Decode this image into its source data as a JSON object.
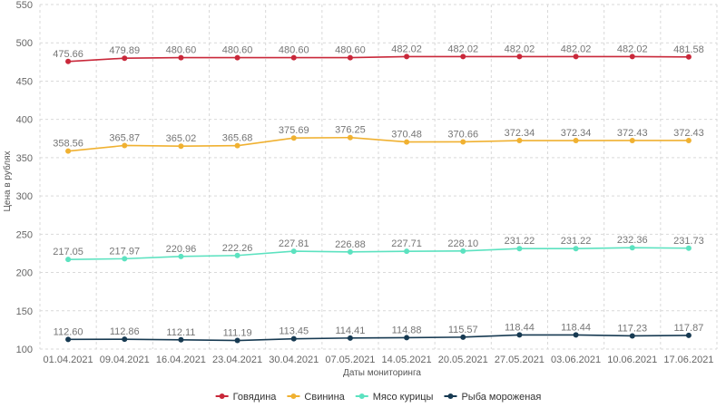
{
  "chart_data": {
    "type": "line",
    "title": "",
    "xlabel": "Даты мониторинга",
    "ylabel": "Цена в рублях",
    "ylim": [
      100,
      550
    ],
    "yticks": [
      "100",
      "150",
      "200",
      "250",
      "300",
      "350",
      "400",
      "450",
      "500",
      "550"
    ],
    "categories": [
      "01.04.2021",
      "09.04.2021",
      "16.04.2021",
      "23.04.2021",
      "30.04.2021",
      "07.05.2021",
      "14.05.2021",
      "20.05.2021",
      "27.05.2021",
      "03.06.2021",
      "10.06.2021",
      "17.06.2021"
    ],
    "grid": true,
    "legend_position": "bottom",
    "series": [
      {
        "name": "Говядина",
        "color": "#c9283a",
        "values": [
          475.66,
          479.89,
          480.6,
          480.6,
          480.6,
          480.6,
          482.02,
          482.02,
          482.02,
          482.02,
          482.02,
          481.58
        ],
        "labels": [
          "475.66",
          "479.89",
          "480.60",
          "480.60",
          "480.60",
          "480.60",
          "482.02",
          "482.02",
          "482.02",
          "482.02",
          "482.02",
          "481.58"
        ]
      },
      {
        "name": "Свинина",
        "color": "#f0b131",
        "values": [
          358.56,
          365.87,
          365.02,
          365.68,
          375.69,
          376.25,
          370.48,
          370.66,
          372.34,
          372.34,
          372.43,
          372.43
        ],
        "labels": [
          "358.56",
          "365.87",
          "365.02",
          "365.68",
          "375.69",
          "376.25",
          "370.48",
          "370.66",
          "372.34",
          "372.34",
          "372.43",
          "372.43"
        ]
      },
      {
        "name": "Мясо курицы",
        "color": "#5ce2c0",
        "values": [
          217.05,
          217.97,
          220.96,
          222.26,
          227.81,
          226.88,
          227.71,
          228.1,
          231.22,
          231.22,
          232.36,
          231.73
        ],
        "labels": [
          "217.05",
          "217.97",
          "220.96",
          "222.26",
          "227.81",
          "226.88",
          "227.71",
          "228.10",
          "231.22",
          "231.22",
          "232.36",
          "231.73"
        ]
      },
      {
        "name": "Рыба мороженая",
        "color": "#173a52",
        "values": [
          112.6,
          112.86,
          112.11,
          111.19,
          113.45,
          114.41,
          114.88,
          115.57,
          118.44,
          118.44,
          117.23,
          117.87
        ],
        "labels": [
          "112.60",
          "112.86",
          "112.11",
          "111.19",
          "113.45",
          "114.41",
          "114.88",
          "115.57",
          "118.44",
          "118.44",
          "117.23",
          "117.87"
        ]
      }
    ]
  }
}
